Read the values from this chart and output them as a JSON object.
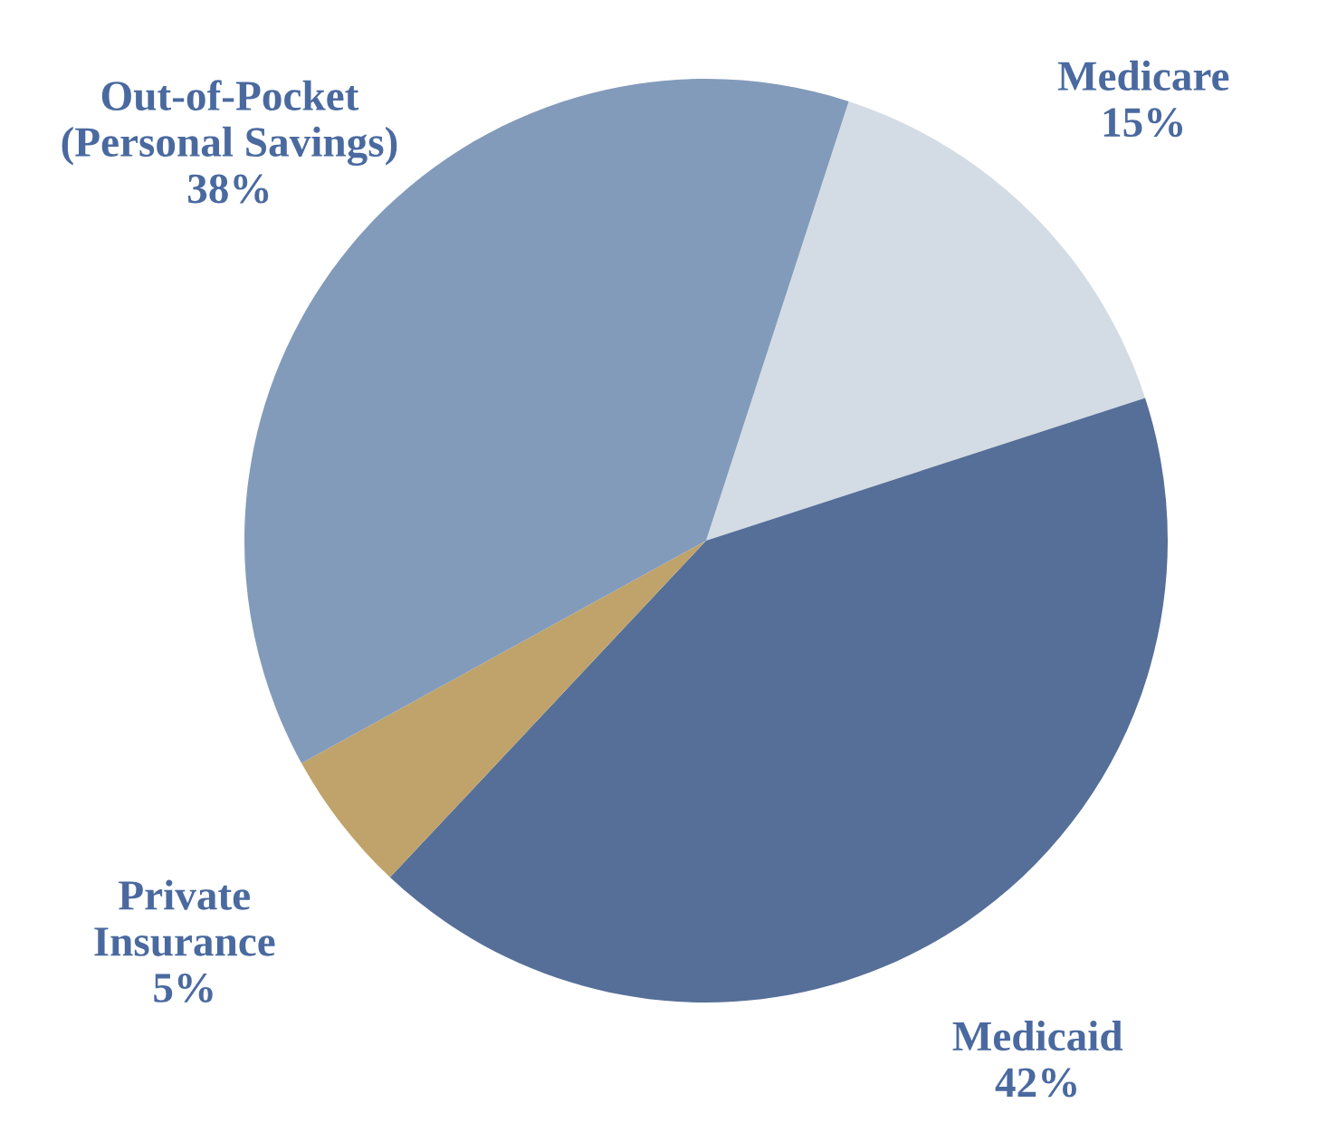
{
  "chart_data": {
    "type": "pie",
    "categories": [
      "Medicare",
      "Medicaid",
      "Private\nInsurance",
      "Out-of-Pocket\n(Personal Savings)"
    ],
    "values": [
      15,
      42,
      5,
      38
    ],
    "value_labels": [
      "15%",
      "42%",
      "5%",
      "38%"
    ],
    "colors": [
      "#d3dce4",
      "#566f98",
      "#c0a36a",
      "#839bba"
    ],
    "legend": false
  }
}
